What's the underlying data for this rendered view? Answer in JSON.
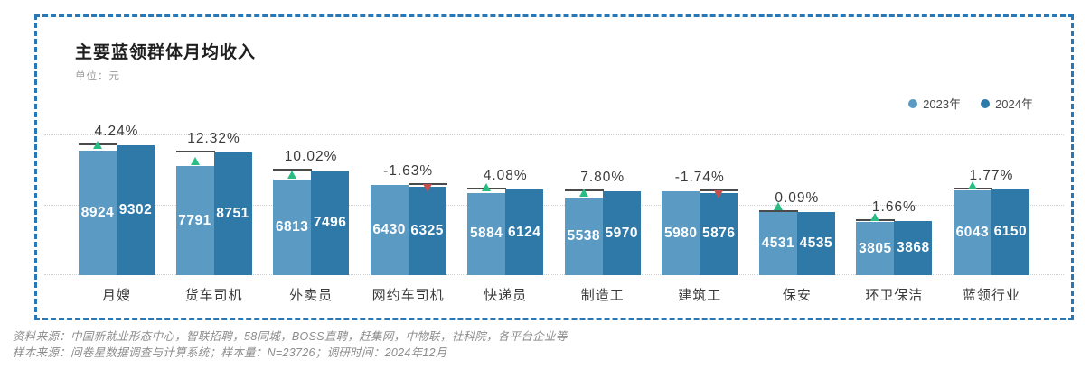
{
  "panel": {
    "title": "主要蓝领群体月均收入",
    "unit": "单位：元"
  },
  "legend": [
    {
      "label": "2023年",
      "color": "#5B9BC3"
    },
    {
      "label": "2024年",
      "color": "#2F79A8"
    }
  ],
  "chart_data": {
    "type": "bar",
    "title": "主要蓝领群体月均收入",
    "unit_label": "单位：元",
    "categories": [
      "月嫂",
      "货车司机",
      "外卖员",
      "网约车司机",
      "快递员",
      "制造工",
      "建筑工",
      "保安",
      "环卫保洁",
      "蓝领行业"
    ],
    "series": [
      {
        "name": "2023年",
        "color": "#5B9BC3",
        "values": [
          8924,
          7791,
          6813,
          6430,
          5884,
          5538,
          5980,
          4531,
          3805,
          6043
        ]
      },
      {
        "name": "2024年",
        "color": "#2F79A8",
        "values": [
          9302,
          8751,
          7496,
          6325,
          6124,
          5970,
          5876,
          4535,
          3868,
          6150
        ]
      }
    ],
    "change_labels": [
      "4.24%",
      "12.32%",
      "10.02%",
      "-1.63%",
      "4.08%",
      "7.80%",
      "-1.74%",
      "0.09%",
      "1.66%",
      "1.77%"
    ],
    "ylim": [
      0,
      10000
    ],
    "gridlines": [
      0,
      5000,
      10000
    ],
    "grid": true,
    "legend_position": "top-right",
    "increase_marker_color": "#2ABD83",
    "decrease_marker_color": "#C4504E",
    "border_color": "#2878B8"
  },
  "footer": {
    "line1": "资料来源：中国新就业形态中心，智联招聘，58同城，BOSS直聘，赶集网，中物联，社科院，各平台企业等",
    "line2": "样本来源：问卷星数据调查与计算系统；样本量：N=23726；调研时间：2024年12月"
  }
}
